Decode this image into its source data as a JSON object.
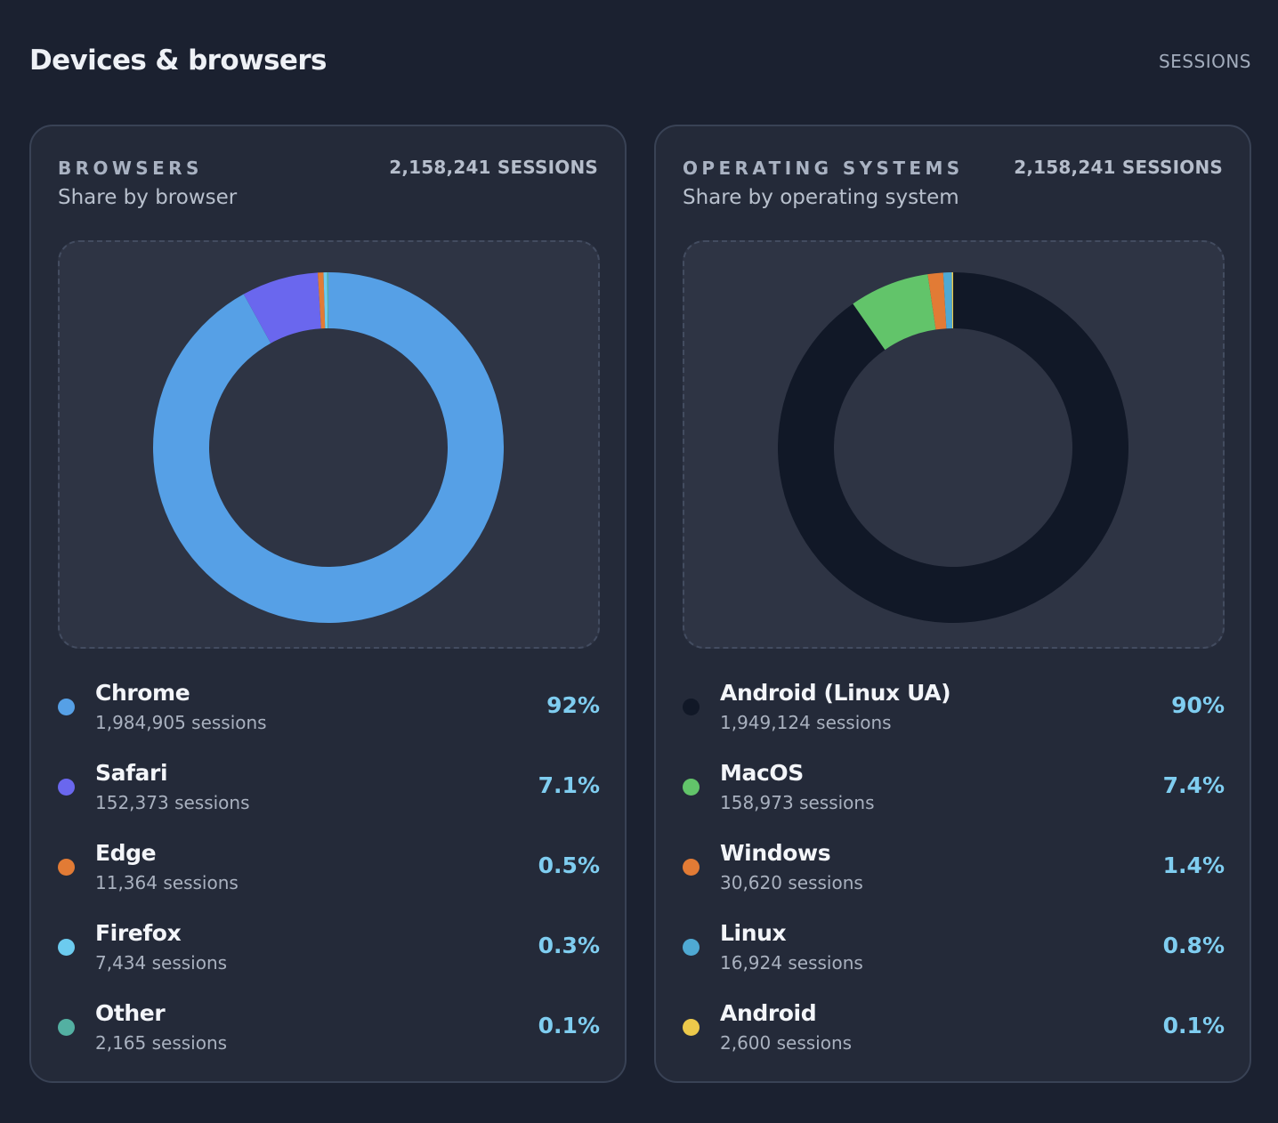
{
  "header": {
    "title": "Devices & browsers",
    "metric": "SESSIONS"
  },
  "panels": [
    {
      "label": "BROWSERS",
      "total": "2,158,241 SESSIONS",
      "subtitle": "Share by browser",
      "items": [
        {
          "name": "Chrome",
          "sessions": "1,984,905 sessions",
          "pct": "92%",
          "color": "#56a0e6"
        },
        {
          "name": "Safari",
          "sessions": "152,373 sessions",
          "pct": "7.1%",
          "color": "#6a67ee"
        },
        {
          "name": "Edge",
          "sessions": "11,364 sessions",
          "pct": "0.5%",
          "color": "#e27b35"
        },
        {
          "name": "Firefox",
          "sessions": "7,434 sessions",
          "pct": "0.3%",
          "color": "#6ccbef"
        },
        {
          "name": "Other",
          "sessions": "2,165 sessions",
          "pct": "0.1%",
          "color": "#53b0a2"
        }
      ]
    },
    {
      "label": "OPERATING SYSTEMS",
      "total": "2,158,241 SESSIONS",
      "subtitle": "Share by operating system",
      "items": [
        {
          "name": "Android (Linux UA)",
          "sessions": "1,949,124 sessions",
          "pct": "90%",
          "color": "#111827"
        },
        {
          "name": "MacOS",
          "sessions": "158,973 sessions",
          "pct": "7.4%",
          "color": "#62c46a"
        },
        {
          "name": "Windows",
          "sessions": "30,620 sessions",
          "pct": "1.4%",
          "color": "#e27b35"
        },
        {
          "name": "Linux",
          "sessions": "16,924 sessions",
          "pct": "0.8%",
          "color": "#4fa9d3"
        },
        {
          "name": "Android",
          "sessions": "2,600 sessions",
          "pct": "0.1%",
          "color": "#ecc94b"
        }
      ]
    }
  ],
  "chart_data": [
    {
      "type": "pie",
      "title": "BROWSERS",
      "subtitle": "Share by browser",
      "total_sessions": 2158241,
      "categories": [
        "Chrome",
        "Safari",
        "Edge",
        "Firefox",
        "Other"
      ],
      "values": [
        1984905,
        152373,
        11364,
        7434,
        2165
      ],
      "percent_labels": [
        "92%",
        "7.1%",
        "0.5%",
        "0.3%",
        "0.1%"
      ]
    },
    {
      "type": "pie",
      "title": "OPERATING SYSTEMS",
      "subtitle": "Share by operating system",
      "total_sessions": 2158241,
      "categories": [
        "Android (Linux UA)",
        "MacOS",
        "Windows",
        "Linux",
        "Android"
      ],
      "values": [
        1949124,
        158973,
        30620,
        16924,
        2600
      ],
      "percent_labels": [
        "90%",
        "7.4%",
        "1.4%",
        "0.8%",
        "0.1%"
      ]
    }
  ]
}
